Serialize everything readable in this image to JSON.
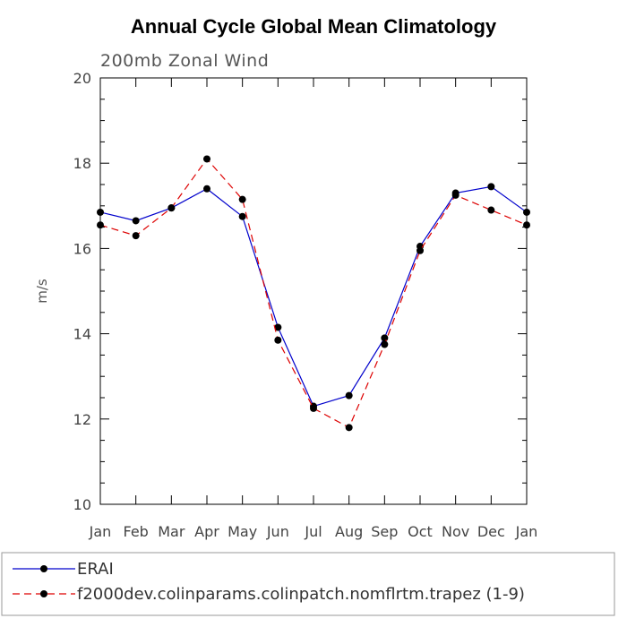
{
  "chart_data": {
    "type": "line",
    "title": "Annual Cycle Global Mean Climatology",
    "subtitle": "200mb Zonal Wind",
    "ylabel": "m/s",
    "xlabel": "",
    "categories": [
      "Jan",
      "Feb",
      "Mar",
      "Apr",
      "May",
      "Jun",
      "Jul",
      "Aug",
      "Sep",
      "Oct",
      "Nov",
      "Dec",
      "Jan"
    ],
    "ylim": [
      10,
      20
    ],
    "yticks": [
      10,
      12,
      14,
      16,
      18,
      20
    ],
    "grid": false,
    "legend_position": "bottom",
    "series": [
      {
        "name": "ERAI",
        "color": "#0000cc",
        "dash": "solid",
        "marker": "filled-circle",
        "values": [
          16.85,
          16.65,
          16.95,
          17.4,
          16.75,
          14.15,
          12.3,
          12.55,
          13.9,
          16.05,
          17.3,
          17.45,
          16.85
        ]
      },
      {
        "name": "f2000dev.colinparams.colinpatch.nomflrtm.trapez (1-9)",
        "color": "#dd0000",
        "dash": "dashed",
        "marker": "filled-circle",
        "values": [
          16.55,
          16.3,
          16.95,
          18.1,
          17.15,
          13.85,
          12.25,
          11.8,
          13.75,
          15.95,
          17.25,
          16.9,
          16.55
        ]
      }
    ]
  }
}
